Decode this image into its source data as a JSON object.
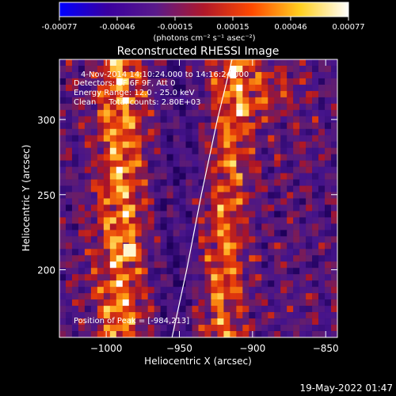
{
  "colorbar": {
    "tick_labels": [
      "-0.00077",
      "-0.00046",
      "-0.00015",
      "0.00015",
      "0.00046",
      "0.00077"
    ],
    "units_label": "(photons cm⁻² s⁻¹ asec⁻²)",
    "colors": [
      "#0000ff",
      "#3a00a0",
      "#5a1a8a",
      "#b0182a",
      "#ff4a00",
      "#ffd020",
      "#ffffff"
    ]
  },
  "plot": {
    "title": "Reconstructed RHESSI Image",
    "info_lines": [
      "4-Nov-2014 14:10:24.000 to 14:16:24.000",
      "Detectors: 3F 6F 9F, Att 0",
      "Energy Range: 12.0 - 25.0 keV",
      "Clean     Total counts: 2.80E+03"
    ],
    "peak_label": "Position of Peak = [-984,213]"
  },
  "footer": {
    "timestamp": "19-May-2022 01:47"
  },
  "chart_data": {
    "type": "heatmap",
    "title": "Reconstructed RHESSI Image",
    "xlabel": "Heliocentric X (arcsec)",
    "ylabel": "Heliocentric Y (arcsec)",
    "xlim": [
      -1032,
      -842
    ],
    "ylim": [
      155,
      340
    ],
    "x_ticks": [
      -1000,
      -950,
      -900,
      -850
    ],
    "x_tick_labels": [
      "−1000",
      "−950",
      "−900",
      "−850"
    ],
    "y_ticks": [
      200,
      250,
      300
    ],
    "y_tick_labels": [
      "200",
      "250",
      "300"
    ],
    "colorscale_min": -0.00077,
    "colorscale_max": 0.00077,
    "peak_position": [
      -984,
      213
    ],
    "limb_curve": [
      [
        -955,
        155
      ],
      [
        -945,
        200
      ],
      [
        -935,
        250
      ],
      [
        -924,
        300
      ],
      [
        -914,
        340
      ]
    ]
  }
}
